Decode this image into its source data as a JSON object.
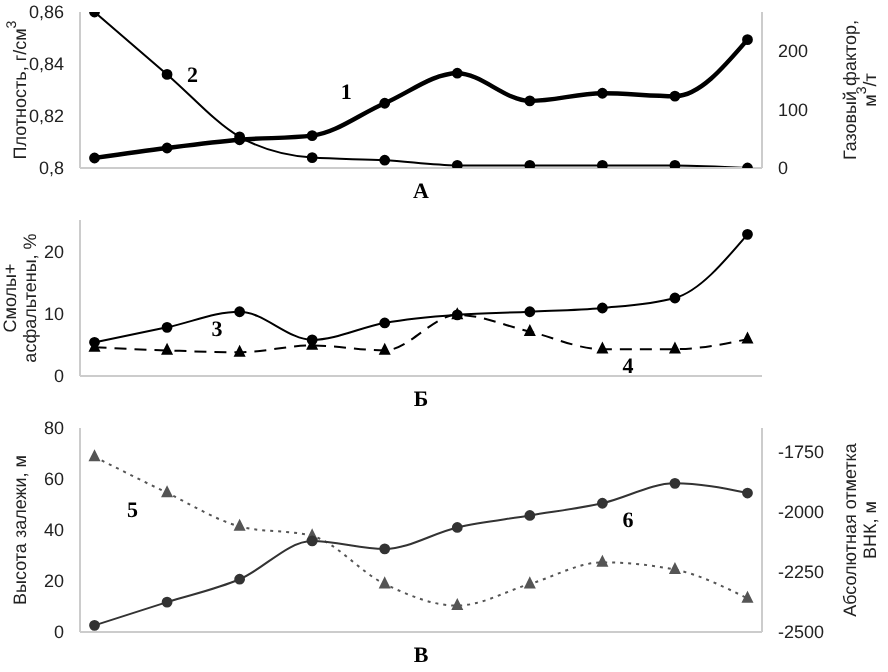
{
  "chart_data": [
    {
      "type": "line",
      "xlabel": "А",
      "ylabel": "Плотность, г/см$^{3}$",
      "y2label": "Газовый фактор,\nм$^{3}$/т",
      "categories": [
        null,
        null,
        null,
        null,
        null,
        null,
        null,
        null,
        null,
        null
      ],
      "tick_labels": "y",
      "ylim": [
        0.8,
        0.86
      ],
      "yticks": [
        {
          "value": 0.8,
          "label": "0,8"
        },
        {
          "value": 0.82,
          "label": "0,82"
        },
        {
          "value": 0.84,
          "label": "0,84"
        },
        {
          "value": 0.86,
          "label": "0,86"
        }
      ],
      "y2lim": [
        0,
        265
      ],
      "y2ticks": [
        0,
        100,
        200
      ],
      "series": [
        {
          "name": "1",
          "color": "#000000",
          "axis": "y2",
          "marker": "circle",
          "line_style": "solid",
          "values": [
            17,
            34,
            48,
            55,
            110,
            161,
            114,
            127,
            122,
            218
          ]
        },
        {
          "name": "2",
          "color": "#000000",
          "marker": "circle",
          "line_style": "solid",
          "values": [
            0.86,
            0.836,
            0.812,
            0.804,
            0.803,
            0.801,
            0.801,
            0.801,
            0.801,
            0.8
          ]
        }
      ]
    },
    {
      "type": "line",
      "xlabel": "Б",
      "ylabel": "Смолы+\nасфальтены, %",
      "categories": [
        null,
        null,
        null,
        null,
        null,
        null,
        null,
        null,
        null,
        null
      ],
      "tick_labels": "y",
      "ylim": [
        0,
        25
      ],
      "yticks": [
        0,
        10,
        20
      ],
      "series": [
        {
          "name": "3",
          "color": "#000000",
          "marker": "circle",
          "line_style": "solid",
          "values": [
            5.4,
            7.8,
            10.3,
            5.8,
            8.5,
            9.8,
            10.3,
            10.9,
            12.5,
            22.7
          ]
        },
        {
          "name": "4",
          "color": "#000000",
          "marker": "triangle",
          "line_style": "dashed",
          "values": [
            4.6,
            4.1,
            3.8,
            4.9,
            4.1,
            9.8,
            7.1,
            4.3,
            4.3,
            5.9
          ]
        }
      ]
    },
    {
      "type": "line",
      "xlabel": "В",
      "ylabel": "Высота залежи, м",
      "y2label": "Абсолютная отметка\nВНК, м",
      "categories": [
        null,
        null,
        null,
        null,
        null,
        null,
        null,
        null,
        null,
        null
      ],
      "tick_labels": "y",
      "ylim": [
        0,
        80
      ],
      "yticks": [
        0,
        20,
        40,
        60,
        80
      ],
      "y2lim": [
        -2500,
        -1650
      ],
      "y2ticks": [
        -2500,
        -2250,
        -2000,
        -1750
      ],
      "series": [
        {
          "name": "5",
          "color": "#555555",
          "axis": "y2",
          "marker": "triangle",
          "line_style": "dotted",
          "values": [
            -1770,
            -1920,
            -2060,
            -2100,
            -2300,
            -2390,
            -2300,
            -2210,
            -2240,
            -2360
          ]
        },
        {
          "name": "6",
          "color": "#333333",
          "marker": "circle",
          "line_style": "solid",
          "values": [
            2.6,
            11.7,
            20.7,
            35.7,
            32.6,
            41,
            45.7,
            50.5,
            58.3,
            54.5
          ]
        }
      ]
    }
  ]
}
